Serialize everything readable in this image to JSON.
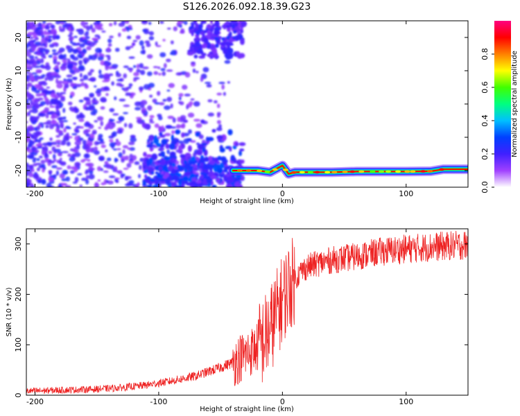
{
  "title": "S126.2026.092.18.39.G23",
  "chart_data": [
    {
      "type": "heatmap",
      "xlabel": "Height of straight line (km)",
      "ylabel": "Frequency (Hz)",
      "xlim": [
        -207,
        150
      ],
      "ylim": [
        -25,
        25
      ],
      "x_ticks": [
        -200,
        -100,
        0,
        100
      ],
      "x_tick_labels": [
        "-200",
        "-100",
        "0",
        "100"
      ],
      "y_ticks": [
        -20,
        -10,
        0,
        10,
        20
      ],
      "y_tick_labels": [
        "-20",
        "-10",
        "0",
        "10",
        "20"
      ],
      "colorbar": {
        "label": "Normalized spectral amplitude",
        "range": [
          0,
          1
        ],
        "ticks": [
          0.0,
          0.2,
          0.4,
          0.6,
          0.8
        ],
        "tick_labels": [
          "0.0",
          "0.2",
          "0.4",
          "0.6",
          "0.8"
        ],
        "colormap": [
          "#ffffff",
          "#a040ff",
          "#4020ff",
          "#0040ff",
          "#00c0ff",
          "#00ff80",
          "#40ff00",
          "#ffff00",
          "#ff8000",
          "#ff0000",
          "#ff0080"
        ]
      },
      "ridge": {
        "description_values": "dominant frequency track vs height",
        "x": [
          -40,
          -30,
          -20,
          -10,
          -5,
          0,
          5,
          10,
          20,
          40,
          60,
          80,
          100,
          120,
          130,
          150
        ],
        "y": [
          -20,
          -20,
          -20,
          -20.5,
          -19.5,
          -18.5,
          -21,
          -20.5,
          -20.5,
          -20.5,
          -20.3,
          -20.3,
          -20.3,
          -20.2,
          -19.6,
          -19.6
        ],
        "peak_amplitude": 0.9
      },
      "noise_region": {
        "x": [
          -207,
          -40
        ],
        "y": [
          -25,
          25
        ]
      }
    },
    {
      "type": "line",
      "xlabel": "Height of straight line (km)",
      "ylabel": "SNR (10 * v/v)",
      "xlim": [
        -207,
        150
      ],
      "ylim": [
        0,
        330
      ],
      "x_ticks": [
        -200,
        -100,
        0,
        100
      ],
      "x_tick_labels": [
        "-200",
        "-100",
        "0",
        "100"
      ],
      "y_ticks": [
        0,
        100,
        200,
        300
      ],
      "y_tick_labels": [
        "0",
        "100",
        "200",
        "300"
      ],
      "series": [
        {
          "color": "#ee2222",
          "x": [
            -207,
            -180,
            -150,
            -130,
            -110,
            -90,
            -70,
            -50,
            -40,
            -30,
            -20,
            -15,
            -10,
            -5,
            0,
            5,
            10,
            15,
            20,
            30,
            40,
            60,
            80,
            100,
            120,
            150
          ],
          "y": [
            8,
            10,
            12,
            15,
            20,
            28,
            38,
            55,
            65,
            80,
            95,
            110,
            130,
            160,
            190,
            215,
            230,
            245,
            255,
            262,
            268,
            275,
            285,
            290,
            294,
            298
          ]
        }
      ]
    }
  ]
}
